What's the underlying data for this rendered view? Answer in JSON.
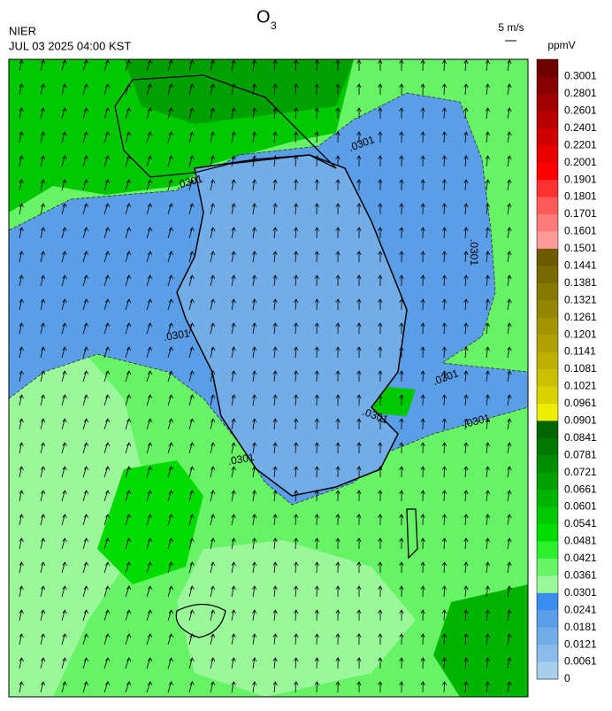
{
  "header": {
    "agency": "NIER",
    "timestamp": "JUL 03 2025 04:00 KST",
    "title": "O",
    "title_sub": "3",
    "wind_scale": "5 m/s"
  },
  "colorbar": {
    "unit": "ppmV",
    "ticks": [
      0.3001,
      0.2801,
      0.2601,
      0.2401,
      0.2201,
      0.2001,
      0.1901,
      0.1801,
      0.1701,
      0.1601,
      0.1501,
      0.1441,
      0.1381,
      0.1321,
      0.1261,
      0.1201,
      0.1141,
      0.1081,
      0.1021,
      0.0961,
      0.0901,
      0.0841,
      0.0781,
      0.0721,
      0.0661,
      0.0601,
      0.0541,
      0.0481,
      0.0421,
      0.0361,
      0.0301,
      0.0241,
      0.0181,
      0.0121,
      0.0061,
      0
    ],
    "colors": [
      "#6e0000",
      "#860000",
      "#a00000",
      "#b80000",
      "#d00000",
      "#e80000",
      "#ff0000",
      "#ff3030",
      "#ff5a5a",
      "#ff7a7a",
      "#ff9a9a",
      "#6b5a00",
      "#776a00",
      "#857800",
      "#938600",
      "#a19400",
      "#afa200",
      "#bdb000",
      "#cbc000",
      "#dad200",
      "#eeee00",
      "#006400",
      "#007800",
      "#008c00",
      "#00a000",
      "#00b400",
      "#00c800",
      "#00dc00",
      "#2cf02c",
      "#66f466",
      "#9af89a",
      "#3a8ef0",
      "#5a9ee8",
      "#72ade8",
      "#8abcea",
      "#a6cfec"
    ]
  },
  "map": {
    "contour_labels": [
      ".0301",
      ".0301",
      ".0301",
      ".0301",
      ".0301",
      ".0301",
      ".0301",
      ".0301"
    ]
  }
}
